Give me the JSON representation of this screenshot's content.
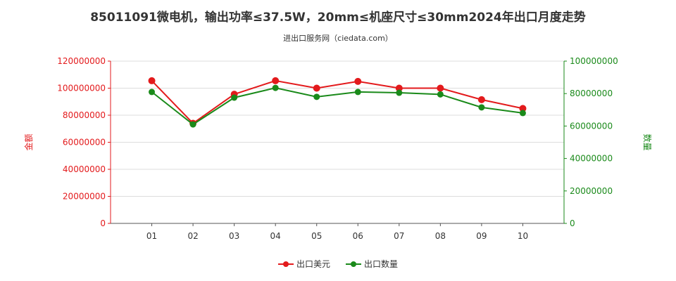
{
  "header": {
    "title": "85011091微电机，输出功率≤37.5W，20mm≤机座尺寸≤30mm2024年出口月度走势",
    "subtitle": "进出口服务网（ciedata.com）"
  },
  "colors": {
    "export_value": "#e31a1c",
    "export_quantity": "#1a8a1a",
    "axis_left": "#e31a1c",
    "axis_right": "#1a8a1a",
    "grid": "#dddddd"
  },
  "chart_data": {
    "type": "line",
    "categories": [
      "01",
      "02",
      "03",
      "04",
      "05",
      "06",
      "07",
      "08",
      "09",
      "10"
    ],
    "y_left": {
      "label": "金额",
      "ylim": [
        0,
        120000000
      ],
      "ticks": [
        "0",
        "20000000",
        "40000000",
        "60000000",
        "80000000",
        "100000000",
        "120000000"
      ]
    },
    "y_right": {
      "label": "数量",
      "ylim": [
        0,
        100000000
      ],
      "ticks": [
        "0",
        "20000000",
        "40000000",
        "60000000",
        "80000000",
        "100000000"
      ]
    },
    "series": [
      {
        "name": "出口美元",
        "axis": "left",
        "values": [
          105500000,
          74000000,
          95500000,
          105500000,
          100000000,
          105000000,
          100000000,
          100000000,
          91500000,
          85000000
        ]
      },
      {
        "name": "出口数量",
        "axis": "right",
        "values": [
          81000000,
          61000000,
          77500000,
          83500000,
          78000000,
          81000000,
          80500000,
          79500000,
          71500000,
          68000000
        ]
      }
    ],
    "grid": true,
    "legend_position": "bottom-center"
  }
}
